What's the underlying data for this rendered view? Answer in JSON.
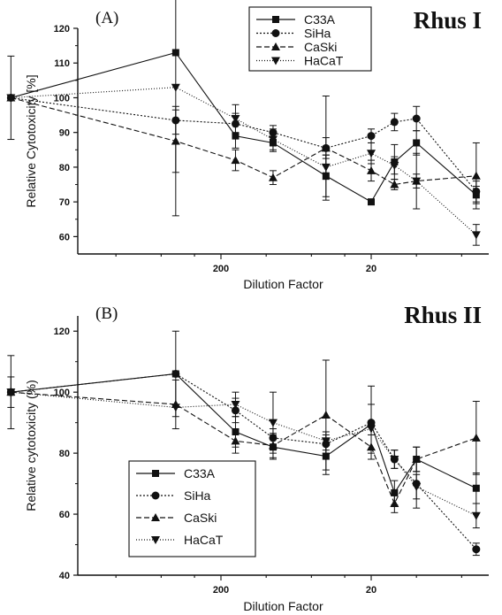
{
  "chart_data": [
    {
      "type": "line",
      "panel_label": "(A)",
      "title": "Rhus I",
      "xlabel": "Dilution Factor",
      "ylabel": "Relative Cytotoxicity [%]",
      "x_scale": "log",
      "x_reversed": true,
      "ylim": [
        55,
        120
      ],
      "y_ticks": [
        60,
        70,
        80,
        90,
        100,
        110,
        120
      ],
      "x_ticks": [
        200,
        20
      ],
      "x_tick_labels": [
        "200",
        "20"
      ],
      "legend_position": "top-center",
      "series": [
        {
          "name": "C33A",
          "marker": "square",
          "dash": "",
          "x": [
            5000,
            400,
            160,
            90,
            40,
            20,
            14,
            10,
            4
          ],
          "y": [
            100,
            113,
            89,
            87,
            77.5,
            70,
            81.5,
            87,
            72
          ],
          "err": [
            0,
            0,
            3.5,
            2.5,
            6,
            0,
            5,
            3.5,
            2.5
          ]
        },
        {
          "name": "SiHa",
          "marker": "circle",
          "dash": "2,2",
          "x": [
            5000,
            400,
            160,
            90,
            40,
            20,
            14,
            10,
            4
          ],
          "y": [
            100,
            93.5,
            92.5,
            90,
            85.5,
            89,
            93,
            94,
            73
          ],
          "err": [
            12,
            4,
            3,
            2,
            3,
            2,
            2.5,
            3.5,
            3
          ]
        },
        {
          "name": "CaSki",
          "marker": "triangle-up",
          "dash": "6,3",
          "x": [
            5000,
            400,
            160,
            90,
            40,
            20,
            14,
            10,
            4
          ],
          "y": [
            100,
            87.5,
            82,
            77,
            85.5,
            79,
            75,
            76,
            77.5
          ],
          "err": [
            0,
            9,
            3,
            2,
            15,
            3,
            1.5,
            2,
            9.5
          ]
        },
        {
          "name": "HaCaT",
          "marker": "triangle-down",
          "dash": "1,2",
          "x": [
            5000,
            400,
            160,
            90,
            40,
            20,
            14,
            10,
            4
          ],
          "y": [
            100,
            103,
            94,
            88,
            80,
            84,
            80.5,
            76,
            60.5
          ],
          "err": [
            0,
            37,
            4,
            3,
            3.5,
            3,
            2.5,
            8,
            3
          ]
        }
      ]
    },
    {
      "type": "line",
      "panel_label": "(B)",
      "title": "Rhus II",
      "xlabel": "Dilution Factor",
      "ylabel": "Relative cytotoxicity (%)",
      "x_scale": "log",
      "x_reversed": true,
      "ylim": [
        40,
        125
      ],
      "y_ticks": [
        40,
        60,
        80,
        100,
        120
      ],
      "x_ticks": [
        200,
        20
      ],
      "x_tick_labels": [
        "200",
        "20"
      ],
      "legend_position": "bottom-left",
      "series": [
        {
          "name": "C33A",
          "marker": "square",
          "dash": "",
          "x": [
            5000,
            400,
            160,
            90,
            40,
            20,
            14,
            10,
            4
          ],
          "y": [
            100,
            106,
            87,
            82,
            79,
            89.5,
            67,
            78,
            68.5
          ],
          "err": [
            0,
            0,
            5,
            4,
            6,
            0,
            4,
            4,
            5
          ]
        },
        {
          "name": "SiHa",
          "marker": "circle",
          "dash": "2,2",
          "x": [
            5000,
            400,
            160,
            90,
            40,
            20,
            14,
            10,
            4
          ],
          "y": [
            100,
            106,
            94,
            85,
            83,
            90,
            78,
            70,
            48.5
          ],
          "err": [
            12,
            14,
            4,
            3,
            3,
            12,
            3,
            8,
            2
          ]
        },
        {
          "name": "CaSki",
          "marker": "triangle-up",
          "dash": "6,3",
          "x": [
            5000,
            400,
            160,
            90,
            40,
            20,
            14,
            10,
            4
          ],
          "y": [
            100,
            96,
            84,
            82.5,
            92.5,
            82,
            63.5,
            78,
            85
          ],
          "err": [
            0,
            8,
            4,
            4,
            18,
            4,
            3,
            4,
            12
          ]
        },
        {
          "name": "HaCaT",
          "marker": "triangle-down",
          "dash": "1,2",
          "x": [
            5000,
            400,
            160,
            90,
            40,
            20,
            14,
            10,
            4
          ],
          "y": [
            100,
            95,
            96,
            90,
            84,
            88,
            78,
            69,
            59.5
          ],
          "err": [
            5,
            0,
            4,
            10,
            3,
            8,
            3,
            4,
            4
          ]
        }
      ]
    }
  ]
}
